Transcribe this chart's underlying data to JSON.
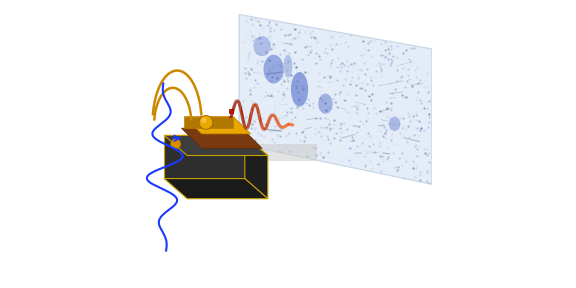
{
  "bg_color": "#ffffff",
  "chip_edge_color": "#c8a000",
  "blue_wave_color": "#1a3aff",
  "gold_arc_color": "#cc8800",
  "panel_bg": "#dce8f5",
  "panel_edge": "#b8cce0"
}
